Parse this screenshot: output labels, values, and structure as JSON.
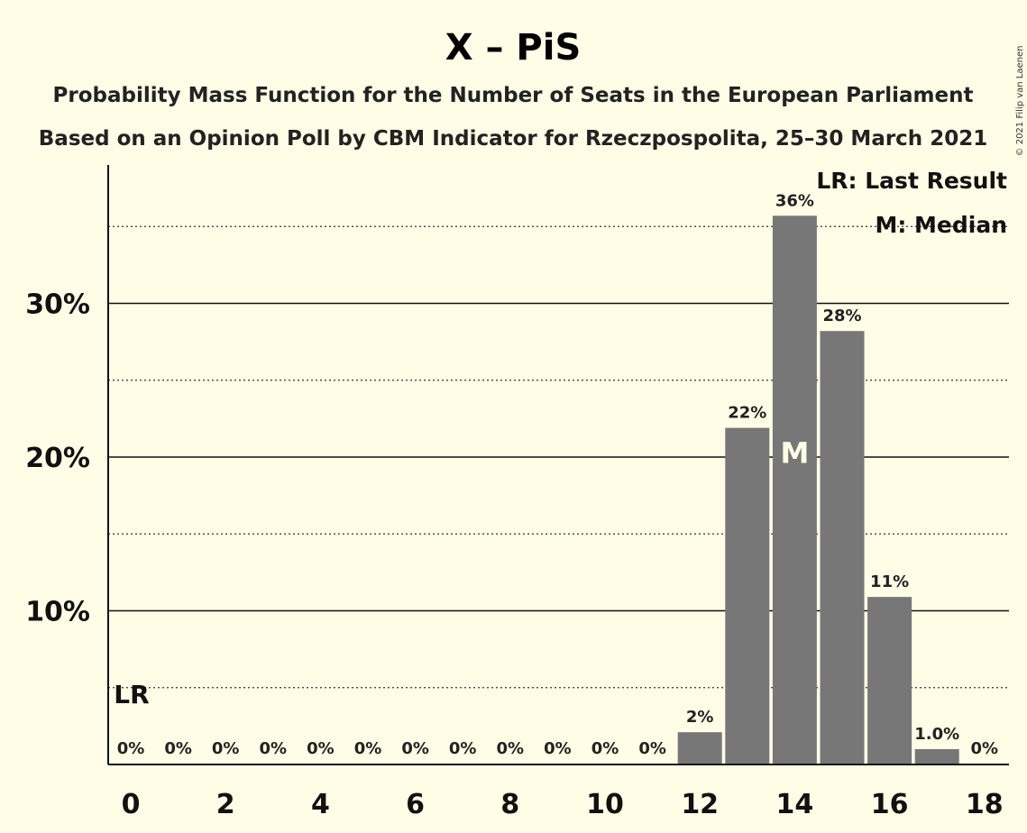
{
  "chart_data": {
    "type": "bar",
    "title": "X – PiS",
    "subtitle_lines": [
      "Probability Mass Function for the Number of Seats in the European Parliament",
      "Based on an Opinion Poll by CBM Indicator for Rzeczpospolita, 25–30 March 2021"
    ],
    "x": [
      0,
      1,
      2,
      3,
      4,
      5,
      6,
      7,
      8,
      9,
      10,
      11,
      12,
      13,
      14,
      15,
      16,
      17,
      18
    ],
    "values": [
      0,
      0,
      0,
      0,
      0,
      0,
      0,
      0,
      0,
      0,
      0,
      0,
      2.1,
      21.9,
      35.7,
      28.2,
      10.9,
      1.0,
      0
    ],
    "value_labels": [
      "0%",
      "0%",
      "0%",
      "0%",
      "0%",
      "0%",
      "0%",
      "0%",
      "0%",
      "0%",
      "0%",
      "0%",
      "2%",
      "22%",
      "36%",
      "28%",
      "11%",
      "1.0%",
      "0%"
    ],
    "x_tick_labels": [
      "0",
      "2",
      "4",
      "6",
      "8",
      "10",
      "12",
      "14",
      "16",
      "18"
    ],
    "x_tick_values": [
      0,
      2,
      4,
      6,
      8,
      10,
      12,
      14,
      16,
      18
    ],
    "y_tick_labels": [
      "10%",
      "20%",
      "30%"
    ],
    "y_tick_values": [
      10,
      20,
      30
    ],
    "y_dotted_values": [
      5,
      15,
      25,
      35
    ],
    "ylim": [
      0,
      39
    ],
    "last_result_seat": 0,
    "last_result_marker": "LR",
    "median_seat": 14,
    "median_marker": "M",
    "legend": [
      "LR: Last Result",
      "M: Median"
    ],
    "legend_position": "top-right",
    "bar_color": "#777777",
    "background_color": "#fffde6",
    "copyright": "© 2021 Filip van Laenen"
  }
}
